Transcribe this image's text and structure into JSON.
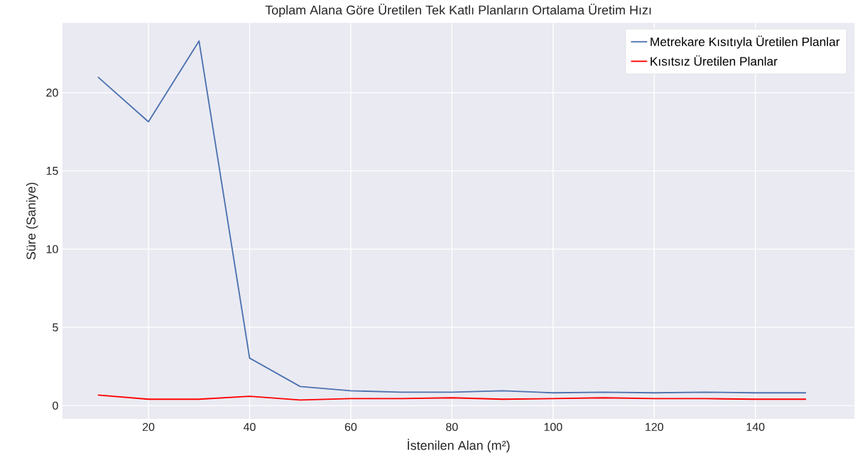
{
  "chart_data": {
    "type": "line",
    "title": "Toplam Alana Göre Üretilen Tek Katlı Planların Ortalama Üretim Hızı",
    "xlabel": "İstenilen Alan (m²)",
    "ylabel": "Süre (Saniye)",
    "x": [
      10,
      20,
      30,
      40,
      50,
      60,
      70,
      80,
      90,
      100,
      110,
      120,
      130,
      140,
      150
    ],
    "series": [
      {
        "name": "Metrekare Kısıtıyla Üretilen Planlar",
        "color": "#4c72b0",
        "values": [
          21.0,
          18.14,
          23.3,
          3.04,
          1.22,
          0.95,
          0.86,
          0.86,
          0.95,
          0.82,
          0.86,
          0.82,
          0.86,
          0.82,
          0.82
        ]
      },
      {
        "name": "Kısıtsız Üretilen Planlar",
        "color": "#ff0000",
        "values": [
          0.68,
          0.41,
          0.41,
          0.6,
          0.36,
          0.45,
          0.45,
          0.5,
          0.41,
          0.45,
          0.5,
          0.45,
          0.45,
          0.41,
          0.41
        ]
      }
    ],
    "xlim": [
      3,
      159.6
    ],
    "ylim": [
      -0.85,
      24.45
    ],
    "xticks": [
      20,
      40,
      60,
      80,
      100,
      120,
      140
    ],
    "yticks": [
      0,
      5,
      10,
      15,
      20
    ],
    "grid": true,
    "legend": "top right",
    "marker": "none",
    "line_style": "solid"
  }
}
